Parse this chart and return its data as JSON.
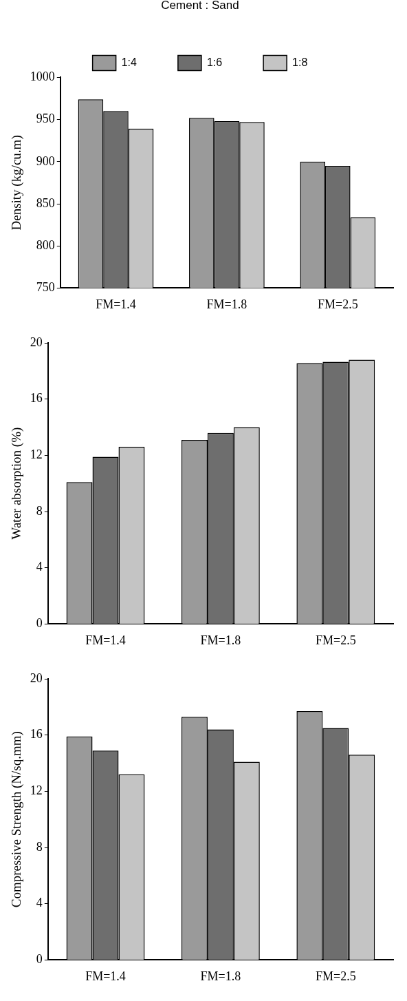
{
  "chart_data": [
    {
      "type": "bar",
      "ylabel": "Density (kg/cu.m)",
      "categories": [
        "FM=1.4",
        "FM=1.8",
        "FM=2.5"
      ],
      "legend": "top",
      "legend_title": "Cement : Sand",
      "grid": false,
      "ylim": [
        750,
        1000
      ],
      "yticks": [
        750,
        800,
        850,
        900,
        950,
        1000
      ],
      "series": [
        {
          "name": "1:4",
          "color": "#9a9a9a",
          "values": [
            974,
            952,
            900
          ]
        },
        {
          "name": "1:6",
          "color": "#6e6e6e",
          "values": [
            960,
            948,
            895
          ]
        },
        {
          "name": "1:8",
          "color": "#c4c4c4",
          "values": [
            939,
            947,
            834
          ]
        }
      ]
    },
    {
      "type": "bar",
      "ylabel": "Water absorption (%)",
      "categories": [
        "FM=1.4",
        "FM=1.8",
        "FM=2.5"
      ],
      "legend": false,
      "grid": false,
      "ylim": [
        0,
        20
      ],
      "yticks": [
        0,
        4,
        8,
        12,
        16,
        20
      ],
      "series": [
        {
          "color": "#9a9a9a",
          "values": [
            10.1,
            13.1,
            18.55
          ]
        },
        {
          "color": "#6e6e6e",
          "values": [
            11.9,
            13.6,
            18.65
          ]
        },
        {
          "color": "#c4c4c4",
          "values": [
            12.6,
            14.0,
            18.8
          ]
        }
      ]
    },
    {
      "type": "bar",
      "ylabel": "Compressive Strength (N/sq.mm)",
      "categories": [
        "FM=1.4",
        "FM=1.8",
        "FM=2.5"
      ],
      "legend": false,
      "grid": false,
      "ylim": [
        0,
        20
      ],
      "yticks": [
        0,
        4,
        8,
        12,
        16,
        20
      ],
      "series": [
        {
          "color": "#9a9a9a",
          "values": [
            15.9,
            17.3,
            17.7
          ]
        },
        {
          "color": "#6e6e6e",
          "values": [
            14.9,
            16.4,
            16.5
          ]
        },
        {
          "color": "#c4c4c4",
          "values": [
            13.2,
            14.1,
            14.6
          ]
        }
      ]
    }
  ]
}
